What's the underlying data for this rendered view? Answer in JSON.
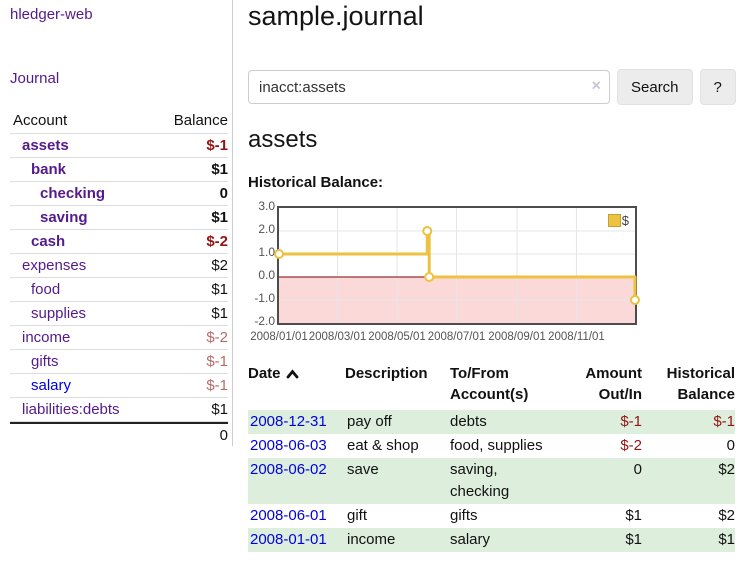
{
  "app": {
    "title": "hledger-web"
  },
  "nav": {
    "journal": "Journal"
  },
  "sidebar": {
    "header": {
      "account": "Account",
      "balance": "Balance"
    },
    "accounts": [
      {
        "name": "assets",
        "depth": 0,
        "bold": true,
        "balance": "$-1"
      },
      {
        "name": "bank",
        "depth": 1,
        "bold": true,
        "balance": "$1"
      },
      {
        "name": "checking",
        "depth": 2,
        "bold": true,
        "balance": "0"
      },
      {
        "name": "saving",
        "depth": 2,
        "bold": true,
        "balance": "$1"
      },
      {
        "name": "cash",
        "depth": 1,
        "bold": true,
        "balance": "$-2"
      },
      {
        "name": "expenses",
        "depth": 0,
        "bold": false,
        "balance": "$2"
      },
      {
        "name": "food",
        "depth": 1,
        "bold": false,
        "balance": "$1"
      },
      {
        "name": "supplies",
        "depth": 1,
        "bold": false,
        "balance": "$1"
      },
      {
        "name": "income",
        "depth": 0,
        "bold": false,
        "balance": "$-2"
      },
      {
        "name": "gifts",
        "depth": 1,
        "bold": false,
        "balance": "$-1"
      },
      {
        "name": "salary",
        "depth": 1,
        "bold": false,
        "balance": "$-1",
        "blue": true
      },
      {
        "name": "liabilities:debts",
        "depth": 0,
        "bold": false,
        "balance": "$1"
      }
    ],
    "total": "0"
  },
  "main": {
    "title": "sample.journal",
    "search": {
      "value": "inacct:assets",
      "button": "Search",
      "help_button": "?"
    },
    "account_heading": "assets",
    "chart_label": "Historical Balance:"
  },
  "icons": {
    "clear": "×",
    "sort": "chevron-up",
    "help": "?"
  },
  "chart_data": {
    "type": "line",
    "step": true,
    "title": "Historical Balance:",
    "series": [
      {
        "name": "$",
        "color": "#edc240",
        "points": [
          {
            "x": "2008-01-01",
            "y": 1
          },
          {
            "x": "2008-06-01",
            "y": 2
          },
          {
            "x": "2008-06-03",
            "y": 0
          },
          {
            "x": "2008-12-31",
            "y": -1
          }
        ]
      }
    ],
    "x_range": [
      "2008-01-01",
      "2008-12-31"
    ],
    "ylim": [
      -2,
      3
    ],
    "y_ticks": [
      "3.0",
      "2.0",
      "1.0",
      "0.0",
      "-1.0",
      "-2.0"
    ],
    "x_ticks": [
      "2008/01/01",
      "2008/03/01",
      "2008/05/01",
      "2008/07/01",
      "2008/09/01",
      "2008/11/01"
    ],
    "legend": {
      "label": "$",
      "position": "top-right"
    },
    "grid": true,
    "negative_region_color": "#fbd9d9",
    "zero_line_color": "#7d0000"
  },
  "register": {
    "headers": {
      "date": "Date",
      "description": "Description",
      "account": "To/From Account(s)",
      "amount": "Amount Out/In",
      "balance": "Historical Balance"
    },
    "rows": [
      {
        "date": "2008-12-31",
        "description": "pay off",
        "accounts": "debts",
        "amount": "$-1",
        "balance": "$-1"
      },
      {
        "date": "2008-06-03",
        "description": "eat & shop",
        "accounts": "food, supplies",
        "amount": "$-2",
        "balance": "0"
      },
      {
        "date": "2008-06-02",
        "description": "save",
        "accounts": "saving, checking",
        "amount": "0",
        "balance": "$2"
      },
      {
        "date": "2008-06-01",
        "description": "gift",
        "accounts": "gifts",
        "amount": "$1",
        "balance": "$2"
      },
      {
        "date": "2008-01-01",
        "description": "income",
        "accounts": "salary",
        "amount": "$1",
        "balance": "$1"
      }
    ]
  }
}
